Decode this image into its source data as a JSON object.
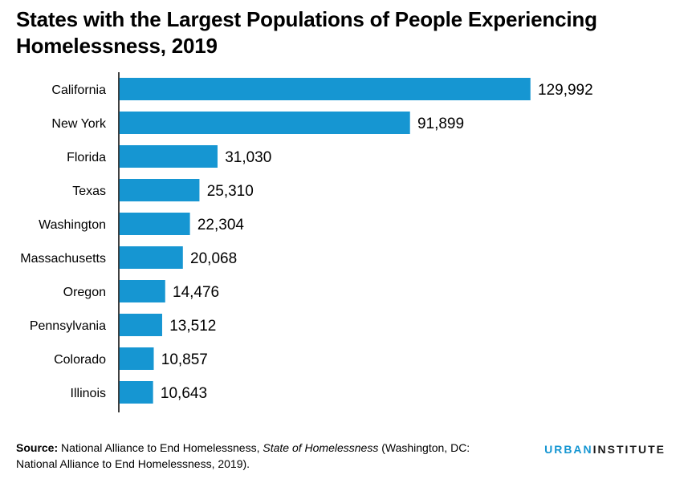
{
  "title": "States with the Largest Populations of People Experiencing Homelessness, 2019",
  "chart_data": {
    "type": "bar",
    "orientation": "horizontal",
    "title": "States with the Largest Populations of People Experiencing Homelessness, 2019",
    "categories": [
      "California",
      "New York",
      "Florida",
      "Texas",
      "Washington",
      "Massachusetts",
      "Oregon",
      "Pennsylvania",
      "Colorado",
      "Illinois"
    ],
    "values": [
      129992,
      91899,
      31030,
      25310,
      22304,
      20068,
      14476,
      13512,
      10857,
      10643
    ],
    "value_labels": [
      "129,992",
      "91,899",
      "31,030",
      "25,310",
      "22,304",
      "20,068",
      "14,476",
      "13,512",
      "10,857",
      "10,643"
    ],
    "xlim": [
      0,
      129992
    ],
    "bar_color": "#1696d2",
    "grid": false,
    "legend": "none"
  },
  "source": {
    "label": "Source:",
    "text_before": " National Alliance to End Homelessness, ",
    "title_italic": "State of Homelessness",
    "text_after": " (Washington, DC: National Alliance to End Homelessness, 2019)."
  },
  "brand": {
    "part1": "URBAN",
    "part2": "INSTITUTE"
  }
}
